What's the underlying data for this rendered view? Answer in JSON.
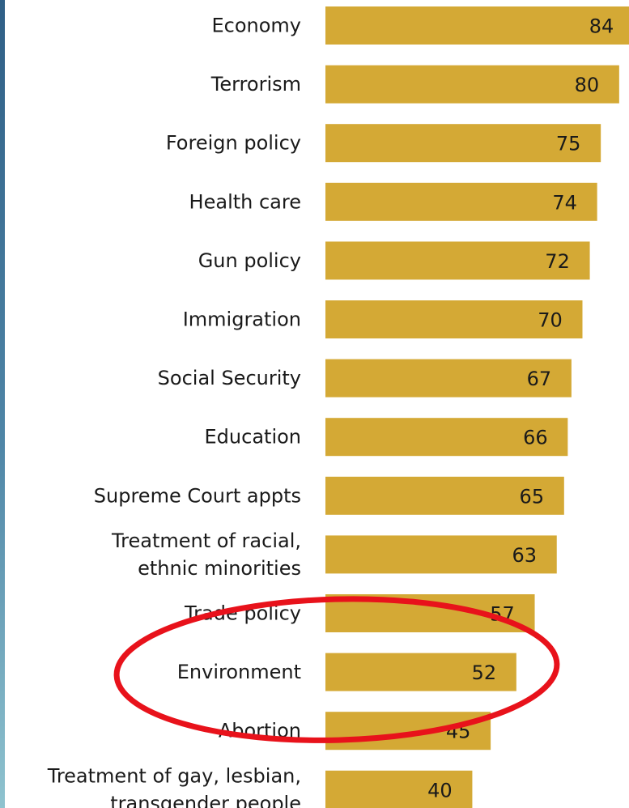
{
  "chart_data": {
    "type": "bar",
    "orientation": "horizontal",
    "categories": [
      [
        "Economy"
      ],
      [
        "Terrorism"
      ],
      [
        "Foreign policy"
      ],
      [
        "Health care"
      ],
      [
        "Gun policy"
      ],
      [
        "Immigration"
      ],
      [
        "Social Security"
      ],
      [
        "Education"
      ],
      [
        "Supreme Court appts"
      ],
      [
        "Treatment of racial,",
        "ethnic minorities"
      ],
      [
        "Trade policy"
      ],
      [
        "Environment"
      ],
      [
        "Abortion"
      ],
      [
        "Treatment of gay, lesbian,",
        "transgender people"
      ]
    ],
    "values": [
      84,
      80,
      75,
      74,
      72,
      70,
      67,
      66,
      65,
      63,
      57,
      52,
      45,
      40
    ],
    "value_labels": [
      "84",
      "80",
      "75",
      "74",
      "72",
      "70",
      "67",
      "66",
      "65",
      "63",
      "57",
      "52",
      "45",
      "40"
    ],
    "xlim": [
      0,
      84
    ],
    "grid": false,
    "legend": "none",
    "bar_color": "#d4a935",
    "highlight": {
      "shape": "ellipse",
      "color": "#e8121b",
      "around_category": "Environment"
    }
  }
}
